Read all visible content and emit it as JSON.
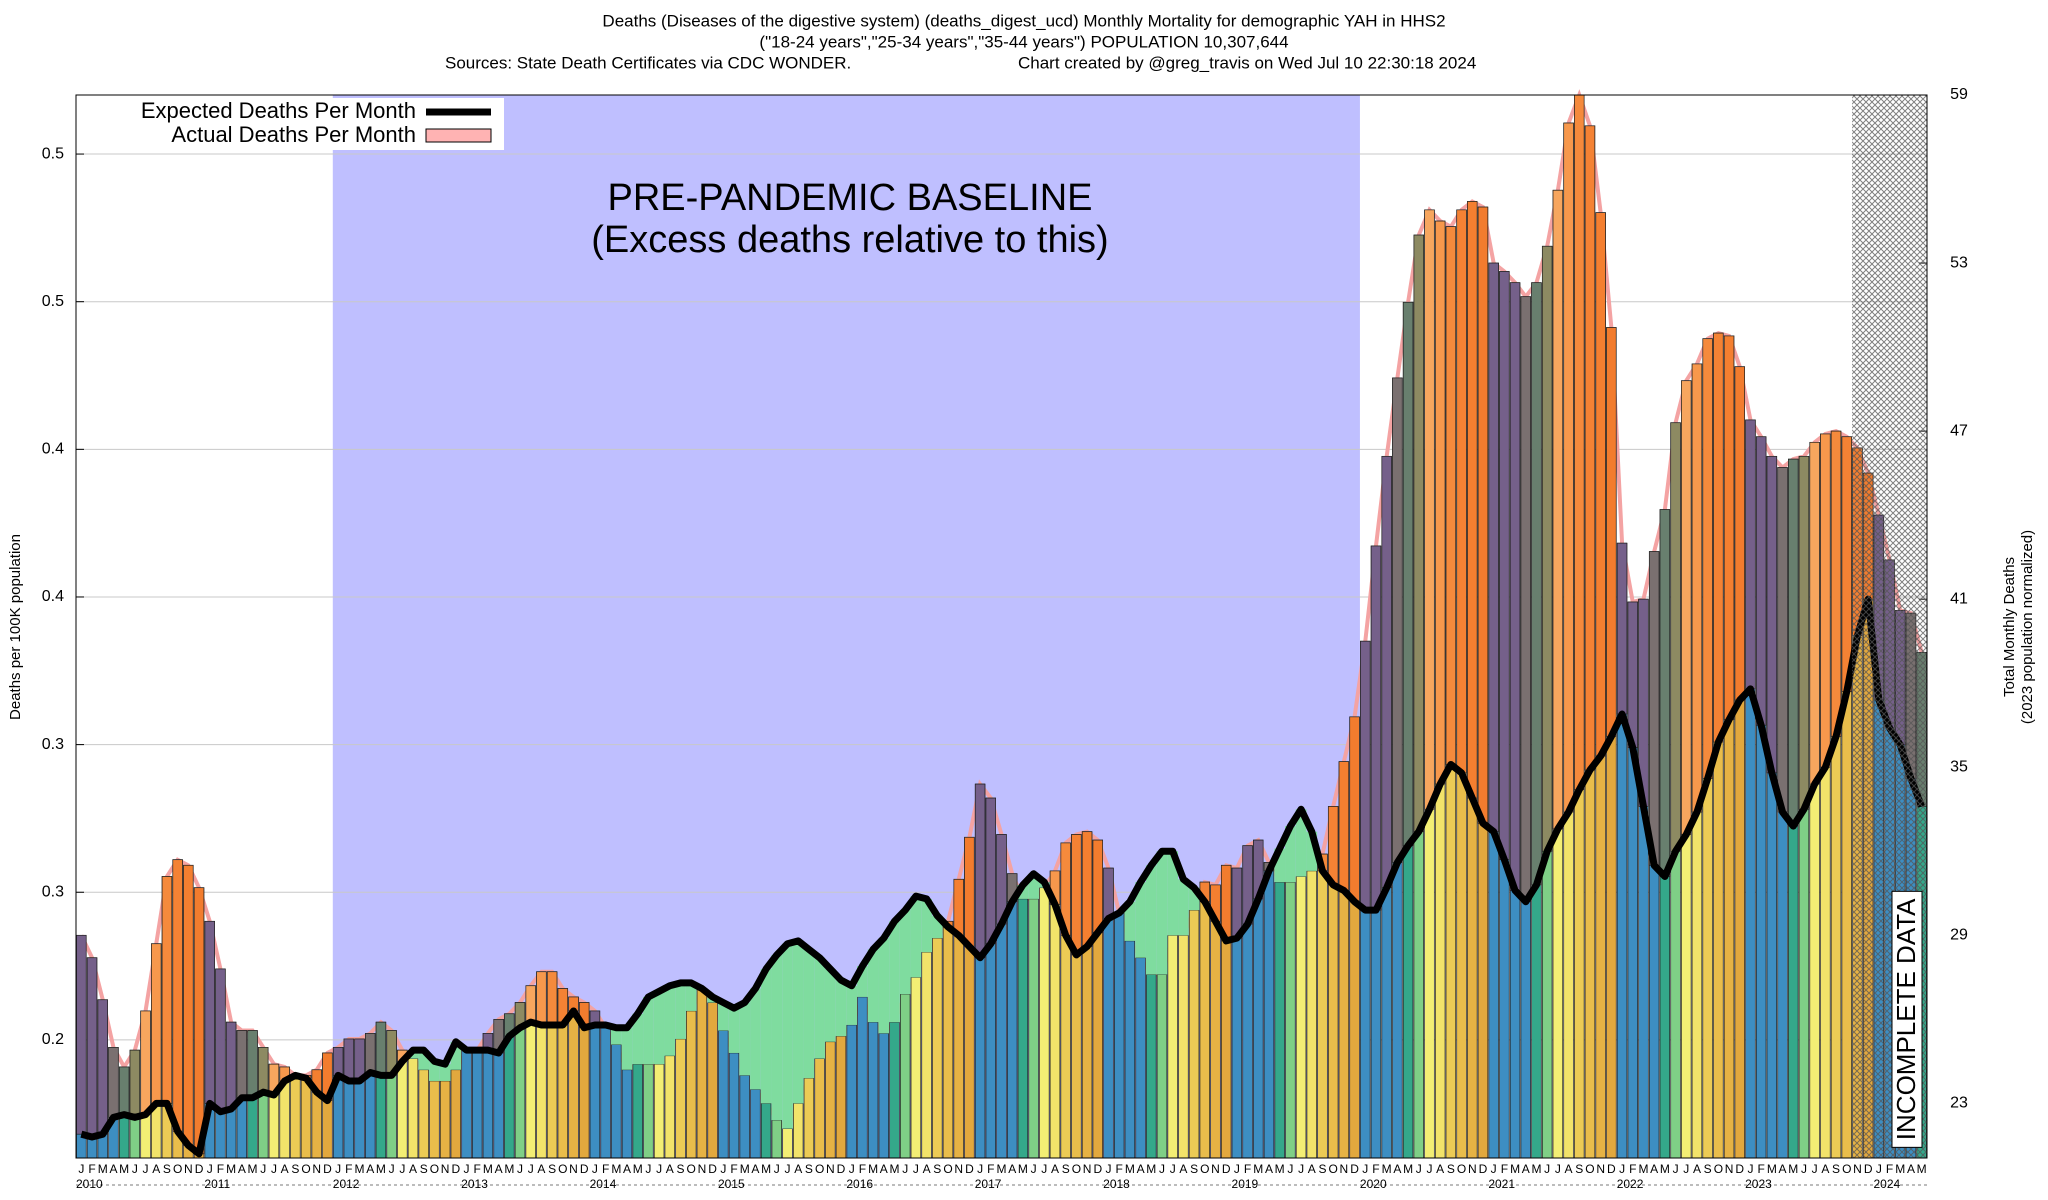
{
  "chart_data": {
    "type": "bar",
    "title": "Deaths (Diseases of the digestive system) (deaths_digest_ucd) Monthly Mortality for demographic YAH in HHS2",
    "subtitle": "(\"18-24 years\",\"25-34 years\",\"35-44 years\") POPULATION 10,307,644",
    "sources": "Sources: State Death Certificates via CDC WONDER.",
    "credit": "Chart created by @greg_travis on Wed Jul 10 22:30:18 2024",
    "ylabel": "Deaths per 100K population",
    "y2label": [
      "Total Monthly Deaths",
      "(2023 population normalized)"
    ],
    "baseline": {
      "label": [
        "PRE-PANDEMIC BASELINE",
        "(Excess deaths relative to this)"
      ],
      "start": "2012-01",
      "end": "2019-12",
      "color": "#bfbfff"
    },
    "incomplete": {
      "label": "INCOMPLETE DATA",
      "start": "2023-11"
    },
    "month_labels": [
      "J",
      "F",
      "M",
      "A",
      "M",
      "J",
      "J",
      "A",
      "S",
      "O",
      "N",
      "D"
    ],
    "years": [
      "2010",
      "2011",
      "2012",
      "2013",
      "2014",
      "2015",
      "2016",
      "2017",
      "2018",
      "2019",
      "2020",
      "2021",
      "2022",
      "2023",
      "2024"
    ],
    "colors": [
      "#3d8ec2",
      "#3d8ec2",
      "#3d8ec2",
      "#3d8ec2",
      "#34a88a",
      "#7fcf86",
      "#f3ee74",
      "#f2e36a",
      "#eccb55",
      "#e9bd4b",
      "#e6b244",
      "#e2a83e"
    ],
    "excess_colors": [
      "#75608a",
      "#75608a",
      "#75608a",
      "#7a7070",
      "#687f6e",
      "#8d8a62",
      "#f7a65e",
      "#f7984c",
      "#f58a3c",
      "#f48234",
      "#f47f30",
      "#f27c2e"
    ],
    "shortfall_color": "#7fdc9f",
    "envelope_color": "#f4a3a3",
    "x": [
      "2010-01",
      "2010-02",
      "2010-03",
      "2010-04",
      "2010-05",
      "2010-06",
      "2010-07",
      "2010-08",
      "2010-09",
      "2010-10",
      "2010-11",
      "2010-12",
      "2011-01",
      "2011-02",
      "2011-03",
      "2011-04",
      "2011-05",
      "2011-06",
      "2011-07",
      "2011-08",
      "2011-09",
      "2011-10",
      "2011-11",
      "2011-12",
      "2012-01",
      "2012-02",
      "2012-03",
      "2012-04",
      "2012-05",
      "2012-06",
      "2012-07",
      "2012-08",
      "2012-09",
      "2012-10",
      "2012-11",
      "2012-12",
      "2013-01",
      "2013-02",
      "2013-03",
      "2013-04",
      "2013-05",
      "2013-06",
      "2013-07",
      "2013-08",
      "2013-09",
      "2013-10",
      "2013-11",
      "2013-12",
      "2014-01",
      "2014-02",
      "2014-03",
      "2014-04",
      "2014-05",
      "2014-06",
      "2014-07",
      "2014-08",
      "2014-09",
      "2014-10",
      "2014-11",
      "2014-12",
      "2015-01",
      "2015-02",
      "2015-03",
      "2015-04",
      "2015-05",
      "2015-06",
      "2015-07",
      "2015-08",
      "2015-09",
      "2015-10",
      "2015-11",
      "2015-12",
      "2016-01",
      "2016-02",
      "2016-03",
      "2016-04",
      "2016-05",
      "2016-06",
      "2016-07",
      "2016-08",
      "2016-09",
      "2016-10",
      "2016-11",
      "2016-12",
      "2017-01",
      "2017-02",
      "2017-03",
      "2017-04",
      "2017-05",
      "2017-06",
      "2017-07",
      "2017-08",
      "2017-09",
      "2017-10",
      "2017-11",
      "2017-12",
      "2018-01",
      "2018-02",
      "2018-03",
      "2018-04",
      "2018-05",
      "2018-06",
      "2018-07",
      "2018-08",
      "2018-09",
      "2018-10",
      "2018-11",
      "2018-12",
      "2019-01",
      "2019-02",
      "2019-03",
      "2019-04",
      "2019-05",
      "2019-06",
      "2019-07",
      "2019-08",
      "2019-09",
      "2019-10",
      "2019-11",
      "2019-12",
      "2020-01",
      "2020-02",
      "2020-03",
      "2020-04",
      "2020-05",
      "2020-06",
      "2020-07",
      "2020-08",
      "2020-09",
      "2020-10",
      "2020-11",
      "2020-12",
      "2021-01",
      "2021-02",
      "2021-03",
      "2021-04",
      "2021-05",
      "2021-06",
      "2021-07",
      "2021-08",
      "2021-09",
      "2021-10",
      "2021-11",
      "2021-12",
      "2022-01",
      "2022-02",
      "2022-03",
      "2022-04",
      "2022-05",
      "2022-06",
      "2022-07",
      "2022-08",
      "2022-09",
      "2022-10",
      "2022-11",
      "2022-12",
      "2023-01",
      "2023-02",
      "2023-03",
      "2023-04",
      "2023-05",
      "2023-06",
      "2023-07",
      "2023-08",
      "2023-09",
      "2023-10",
      "2023-11",
      "2023-12",
      "2024-01",
      "2024-02",
      "2024-03",
      "2024-04",
      "2024-05"
    ],
    "series": [
      {
        "name": "Expected Deaths Per Month",
        "color": "#000000",
        "axis": "y2",
        "values": [
          21.9,
          21.8,
          21.9,
          22.5,
          22.6,
          22.5,
          22.6,
          23.0,
          23.0,
          22.0,
          21.5,
          21.2,
          23.0,
          22.7,
          22.8,
          23.2,
          23.2,
          23.4,
          23.3,
          23.8,
          24.0,
          23.9,
          23.4,
          23.1,
          24.0,
          23.8,
          23.8,
          24.1,
          24.0,
          24.0,
          24.5,
          24.9,
          24.9,
          24.5,
          24.4,
          25.2,
          24.9,
          24.9,
          24.9,
          24.8,
          25.4,
          25.7,
          25.9,
          25.8,
          25.8,
          25.8,
          26.3,
          25.7,
          25.8,
          25.8,
          25.7,
          25.7,
          26.2,
          26.8,
          27.0,
          27.2,
          27.3,
          27.3,
          27.1,
          26.8,
          26.6,
          26.4,
          26.6,
          27.1,
          27.8,
          28.3,
          28.7,
          28.8,
          28.5,
          28.2,
          27.8,
          27.4,
          27.2,
          27.9,
          28.5,
          28.9,
          29.5,
          29.9,
          30.4,
          30.3,
          29.7,
          29.3,
          29.0,
          28.6,
          28.2,
          28.7,
          29.4,
          30.2,
          30.8,
          31.2,
          30.9,
          30.1,
          29.0,
          28.3,
          28.6,
          29.1,
          29.6,
          29.8,
          30.2,
          30.9,
          31.5,
          32.0,
          32.0,
          31.0,
          30.7,
          30.2,
          29.5,
          28.8,
          28.9,
          29.4,
          30.3,
          31.3,
          32.1,
          32.9,
          33.5,
          32.7,
          31.3,
          30.8,
          30.6,
          30.2,
          29.9,
          29.9,
          30.7,
          31.6,
          32.2,
          32.7,
          33.5,
          34.4,
          35.1,
          34.8,
          33.9,
          33.0,
          32.7,
          31.7,
          30.6,
          30.2,
          30.8,
          32.0,
          32.8,
          33.4,
          34.2,
          34.9,
          35.4,
          36.1,
          36.9,
          35.7,
          33.6,
          31.5,
          31.1,
          32.0,
          32.6,
          33.4,
          34.6,
          35.9,
          36.7,
          37.4,
          37.8,
          36.5,
          34.8,
          33.4,
          32.9,
          33.5,
          34.4,
          35.0,
          36.1,
          37.7,
          39.7,
          41.0,
          37.4,
          36.4,
          35.8,
          34.6,
          33.6
        ]
      },
      {
        "name": "Actual Deaths Per Month",
        "color": "#ffb3b3",
        "axis": "y2",
        "values": [
          29.0,
          28.2,
          26.7,
          25.0,
          24.3,
          24.9,
          26.3,
          28.7,
          31.1,
          31.7,
          31.5,
          30.7,
          29.5,
          27.8,
          25.9,
          25.6,
          25.6,
          25.0,
          24.4,
          24.3,
          24.0,
          24.0,
          24.2,
          24.8,
          25.0,
          25.3,
          25.3,
          25.5,
          25.9,
          25.6,
          24.9,
          24.6,
          24.2,
          23.8,
          23.8,
          24.2,
          24.9,
          24.9,
          25.5,
          26.0,
          26.2,
          26.6,
          27.2,
          27.7,
          27.7,
          27.1,
          26.8,
          26.6,
          26.3,
          25.7,
          25.1,
          24.2,
          24.4,
          24.4,
          24.4,
          24.7,
          25.3,
          26.3,
          27.1,
          26.6,
          25.6,
          24.8,
          24.0,
          23.5,
          23.0,
          22.4,
          22.1,
          23.0,
          23.9,
          24.6,
          25.2,
          25.4,
          25.8,
          26.8,
          25.9,
          25.5,
          25.9,
          26.9,
          27.5,
          28.4,
          28.9,
          29.5,
          31.0,
          32.5,
          34.4,
          33.9,
          32.6,
          31.2,
          30.3,
          30.3,
          30.7,
          31.3,
          32.3,
          32.6,
          32.7,
          32.4,
          31.4,
          29.8,
          28.8,
          28.2,
          27.6,
          27.6,
          29.0,
          29.0,
          29.9,
          30.9,
          30.8,
          31.5,
          31.4,
          32.2,
          32.4,
          31.6,
          30.9,
          30.9,
          31.1,
          31.3,
          31.9,
          33.6,
          35.2,
          36.8,
          39.5,
          42.9,
          46.1,
          48.9,
          51.6,
          54.0,
          54.9,
          54.5,
          54.3,
          54.9,
          55.2,
          55.0,
          53.0,
          52.7,
          52.3,
          51.8,
          52.3,
          53.6,
          55.6,
          58.0,
          59.0,
          57.9,
          54.8,
          50.7,
          43.0,
          40.9,
          41.0,
          42.7,
          44.2,
          47.3,
          48.8,
          49.4,
          50.3,
          50.5,
          50.4,
          49.3,
          47.4,
          46.8,
          46.1,
          45.7,
          46.0,
          46.1,
          46.6,
          46.9,
          47.0,
          46.8,
          46.4,
          45.5,
          44.0,
          42.4,
          40.6,
          40.5,
          39.1
        ]
      }
    ],
    "ylim": [
      0.16,
      0.52
    ],
    "yticks": [
      {
        "value": 0.2,
        "label": "0.2"
      },
      {
        "value": 0.25,
        "label": "0.3"
      },
      {
        "value": 0.3,
        "label": "0.3"
      },
      {
        "value": 0.35,
        "label": "0.4"
      },
      {
        "value": 0.4,
        "label": "0.4"
      },
      {
        "value": 0.45,
        "label": "0.5"
      },
      {
        "value": 0.5,
        "label": "0.5"
      }
    ],
    "y2lim": [
      21.05,
      59.0
    ],
    "y2ticks": [
      23,
      29,
      35,
      41,
      47,
      53,
      59
    ],
    "grid": true,
    "legend": "upper left"
  }
}
